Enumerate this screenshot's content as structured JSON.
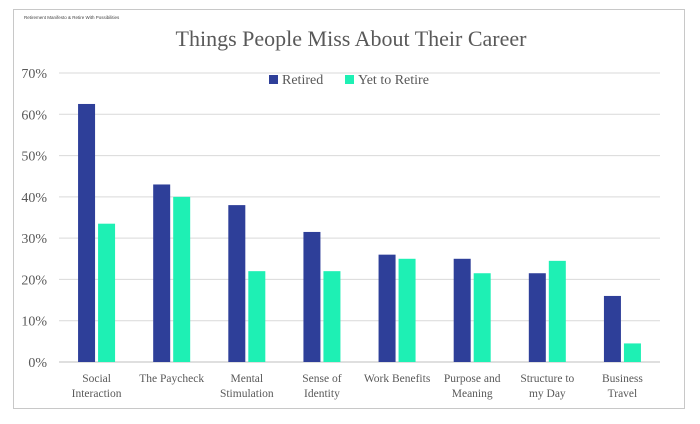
{
  "chart_data": {
    "type": "bar",
    "credit": "Retirement Manifesto & Retire With Possibilities",
    "title": "Things People Miss About Their Career",
    "categories": [
      [
        "Social",
        "Interaction"
      ],
      [
        "The Paycheck"
      ],
      [
        "Mental",
        "Stimulation"
      ],
      [
        "Sense of",
        "Identity"
      ],
      [
        "Work Benefits"
      ],
      [
        "Purpose and",
        "Meaning"
      ],
      [
        "Structure to",
        "my Day"
      ],
      [
        "Business",
        "Travel"
      ]
    ],
    "series": [
      {
        "name": "Retired",
        "color": "#2e3f99",
        "values": [
          62.5,
          43,
          38,
          31.5,
          26,
          25,
          21.5,
          16
        ]
      },
      {
        "name": "Yet to Retire",
        "color": "#1ef0b4",
        "values": [
          33.5,
          40,
          22,
          22,
          25,
          21.5,
          24.5,
          4.5
        ]
      }
    ],
    "ylim": [
      0,
      70
    ],
    "yticks": [
      "0%",
      "10%",
      "20%",
      "30%",
      "40%",
      "50%",
      "60%",
      "70%"
    ],
    "grid": true,
    "legend": "top-center"
  }
}
